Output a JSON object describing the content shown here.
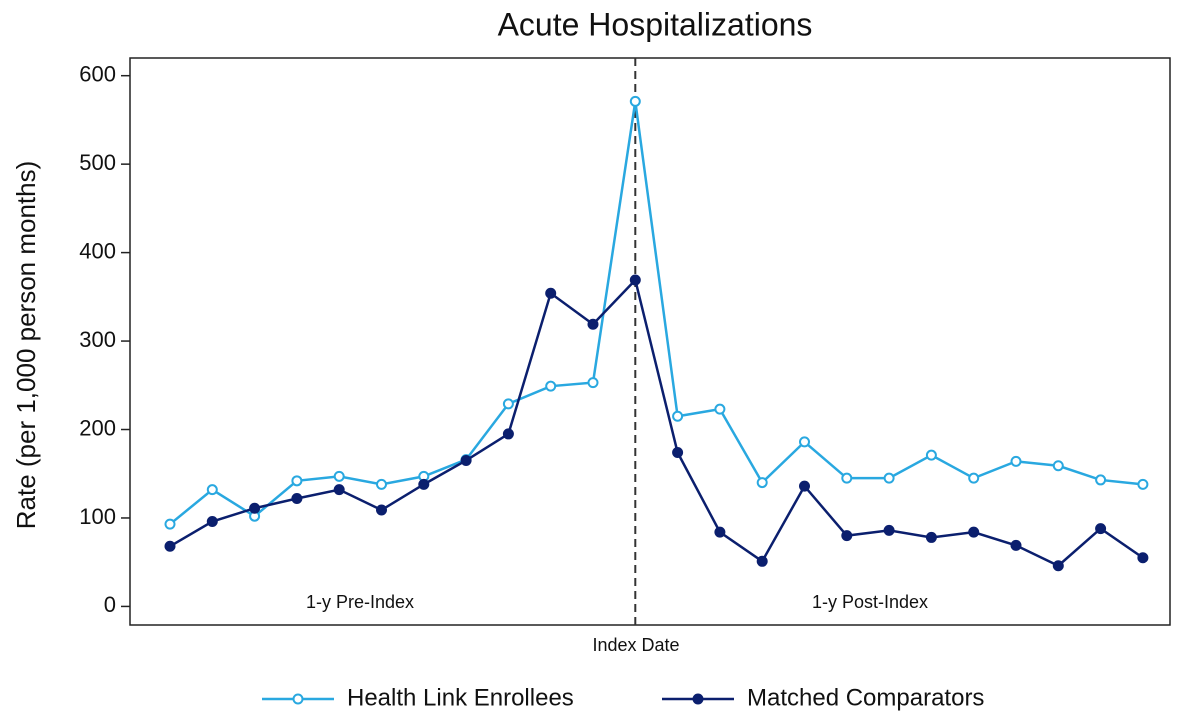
{
  "chart_data": {
    "type": "line",
    "title": "Acute Hospitalizations",
    "ylabel": "Rate (per 1,000 person months)",
    "xlabel": "Index Date",
    "categories": [
      null,
      null,
      null,
      null,
      null,
      null,
      null,
      null,
      null,
      null,
      null,
      null,
      null,
      null,
      null,
      null,
      null,
      null,
      null,
      null,
      null,
      null,
      null,
      null
    ],
    "series": [
      {
        "name": "Health Link Enrollees",
        "color": "#29a8e0",
        "marker": "open",
        "values": [
          93,
          132,
          102,
          142,
          147,
          138,
          147,
          166,
          229,
          249,
          253,
          571,
          215,
          223,
          140,
          186,
          145,
          145,
          171,
          145,
          164,
          159,
          143,
          138
        ]
      },
      {
        "name": "Matched Comparators",
        "color": "#0b1f6e",
        "marker": "filled",
        "values": [
          68,
          96,
          111,
          122,
          132,
          109,
          138,
          165,
          195,
          354,
          319,
          369,
          174,
          84,
          51,
          136,
          80,
          86,
          78,
          84,
          69,
          46,
          88,
          55
        ]
      }
    ],
    "ylim": [
      -21,
      620
    ],
    "yticks": [
      0,
      100,
      200,
      300,
      400,
      500,
      600
    ],
    "index_line": 11,
    "annotations": [
      "1-y Pre-Index",
      "1-y Post-Index"
    ],
    "legend": "bottom"
  }
}
